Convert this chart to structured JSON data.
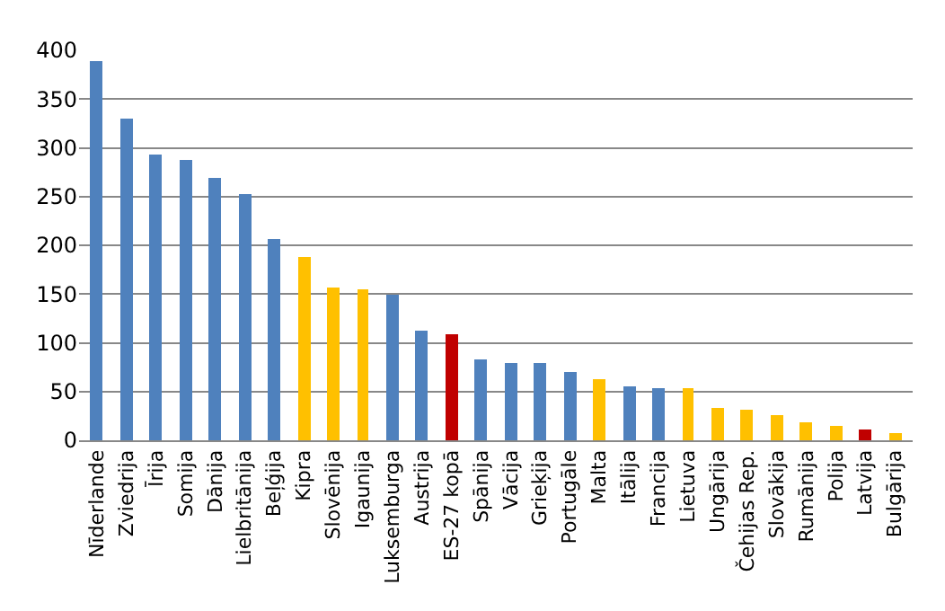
{
  "chart_data": {
    "type": "bar",
    "categories": [
      "Nīderlande",
      "Zviedrija",
      "Īrija",
      "Somija",
      "Dānija",
      "Lielbritānija",
      "Beļģija",
      "Kipra",
      "Slovēnija",
      "Igaunija",
      "Luksemburga",
      "Austrija",
      "ES-27 kopā",
      "Spānija",
      "Vācija",
      "Grieķija",
      "Portugāle",
      "Malta",
      "Itālija",
      "Francija",
      "Lietuva",
      "Ungārija",
      "Čehijas Rep.",
      "Slovākija",
      "Rumānija",
      "Polija",
      "Latvija",
      "Bulgārija"
    ],
    "values": [
      389,
      330,
      293,
      288,
      269,
      253,
      207,
      188,
      156,
      154,
      150,
      113,
      108,
      83,
      79,
      79,
      70,
      63,
      56,
      54,
      53,
      34,
      32,
      25,
      18,
      14,
      11,
      7
    ],
    "colors": [
      "#4f81bd",
      "#4f81bd",
      "#4f81bd",
      "#4f81bd",
      "#4f81bd",
      "#4f81bd",
      "#4f81bd",
      "#ffc000",
      "#ffc000",
      "#ffc000",
      "#4f81bd",
      "#4f81bd",
      "#c00000",
      "#4f81bd",
      "#4f81bd",
      "#4f81bd",
      "#4f81bd",
      "#ffc000",
      "#4f81bd",
      "#4f81bd",
      "#ffc000",
      "#ffc000",
      "#ffc000",
      "#ffc000",
      "#ffc000",
      "#ffc000",
      "#c00000",
      "#ffc000"
    ],
    "ylim": [
      0,
      400
    ],
    "yticks": [
      0,
      50,
      100,
      150,
      200,
      250,
      300,
      350,
      400
    ],
    "grid": "y",
    "legend": false
  }
}
